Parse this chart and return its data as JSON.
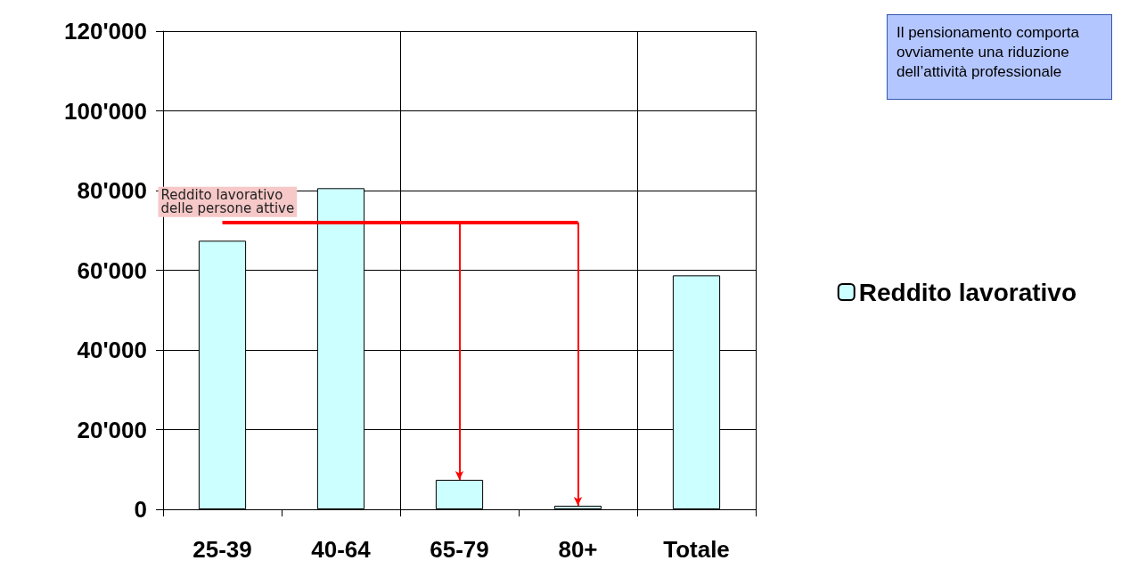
{
  "chart_data": {
    "type": "bar",
    "categories": [
      "25-39",
      "40-64",
      "65-79",
      "80+",
      "Totale"
    ],
    "series": [
      {
        "name": "Reddito lavorativo",
        "color": "#ccffff",
        "values": [
          67400,
          80600,
          7400,
          900,
          58700
        ]
      }
    ],
    "ylim": [
      0,
      120000
    ],
    "yticks": [
      {
        "value": 0,
        "label": "0"
      },
      {
        "value": 20000,
        "label": "20'000"
      },
      {
        "value": 40000,
        "label": "40'000"
      },
      {
        "value": 60000,
        "label": "60'000"
      },
      {
        "value": 80000,
        "label": "80'000"
      },
      {
        "value": 100000,
        "label": "100'000"
      },
      {
        "value": 120000,
        "label": "120'000"
      }
    ],
    "grid": true,
    "legend": "right",
    "ref_lines": [
      {
        "axis": "y",
        "value": 72000,
        "label": "Reddito lavorativo\ndelle persone attive",
        "color": "#ff0000"
      }
    ],
    "annotations": [
      "Il pensionamento comporta\novviamente una riduzione\ndell’attività professionale"
    ]
  }
}
